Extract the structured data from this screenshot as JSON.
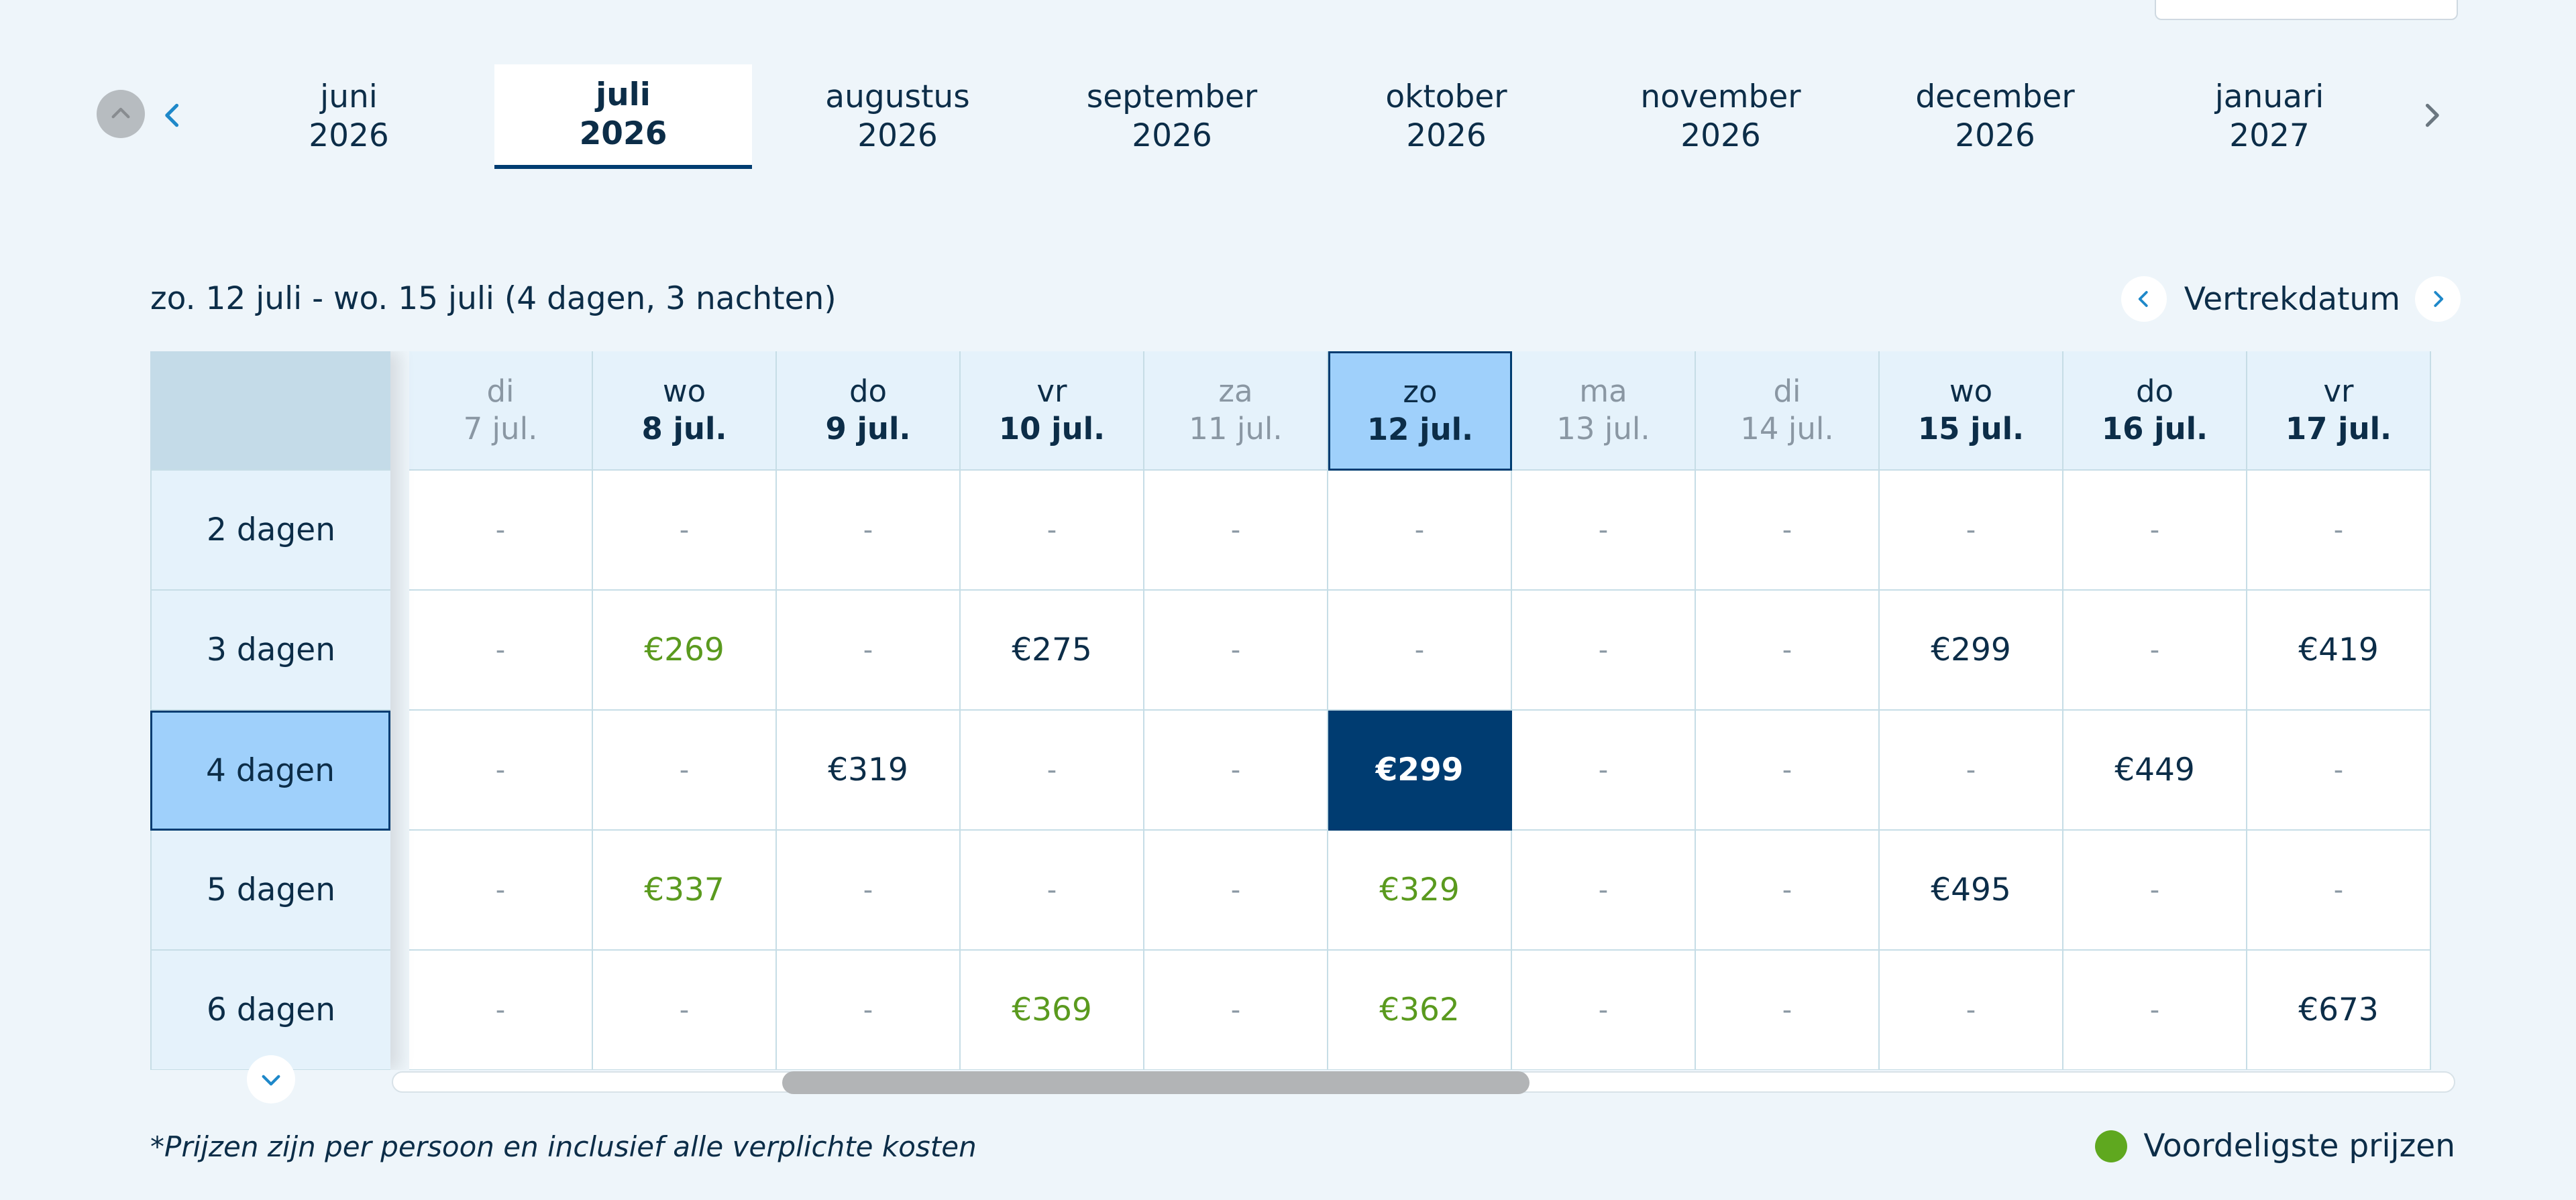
{
  "month_nav": {
    "prev_icon": "chevron-left-icon",
    "next_icon": "chevron-right-icon",
    "colors": {
      "prev": "#1e88c9",
      "next": "#6b7780"
    },
    "months": [
      {
        "month": "juni",
        "year": "2026",
        "active": false
      },
      {
        "month": "juli",
        "year": "2026",
        "active": true
      },
      {
        "month": "augustus",
        "year": "2026",
        "active": false
      },
      {
        "month": "september",
        "year": "2026",
        "active": false
      },
      {
        "month": "oktober",
        "year": "2026",
        "active": false
      },
      {
        "month": "november",
        "year": "2026",
        "active": false
      },
      {
        "month": "december",
        "year": "2026",
        "active": false
      },
      {
        "month": "januari",
        "year": "2027",
        "active": false
      }
    ]
  },
  "selection": {
    "range_text": "zo. 12 juli - wo. 15 juli (4 dagen, 3 nachten)",
    "departure_label": "Vertrekdatum"
  },
  "table": {
    "columns": [
      {
        "day": "di",
        "date": "7 jul.",
        "muted": true
      },
      {
        "day": "wo",
        "date": "8 jul.",
        "muted": false
      },
      {
        "day": "do",
        "date": "9 jul.",
        "muted": false
      },
      {
        "day": "vr",
        "date": "10 jul.",
        "muted": false
      },
      {
        "day": "za",
        "date": "11 jul.",
        "muted": true
      },
      {
        "day": "zo",
        "date": "12 jul.",
        "muted": false,
        "selected": true
      },
      {
        "day": "ma",
        "date": "13 jul.",
        "muted": true
      },
      {
        "day": "di",
        "date": "14 jul.",
        "muted": true
      },
      {
        "day": "wo",
        "date": "15 jul.",
        "muted": false
      },
      {
        "day": "do",
        "date": "16 jul.",
        "muted": false
      },
      {
        "day": "vr",
        "date": "17 jul.",
        "muted": false
      }
    ],
    "rows": [
      {
        "label": "2 dagen",
        "selected": false,
        "cells": [
          {
            "v": "-"
          },
          {
            "v": "-"
          },
          {
            "v": "-"
          },
          {
            "v": "-"
          },
          {
            "v": "-"
          },
          {
            "v": "-"
          },
          {
            "v": "-"
          },
          {
            "v": "-"
          },
          {
            "v": "-"
          },
          {
            "v": "-"
          },
          {
            "v": "-"
          }
        ]
      },
      {
        "label": "3 dagen",
        "selected": false,
        "cells": [
          {
            "v": "-"
          },
          {
            "v": "€269",
            "cheap": true
          },
          {
            "v": "-"
          },
          {
            "v": "€275"
          },
          {
            "v": "-"
          },
          {
            "v": "-"
          },
          {
            "v": "-"
          },
          {
            "v": "-"
          },
          {
            "v": "€299"
          },
          {
            "v": "-"
          },
          {
            "v": "€419"
          }
        ]
      },
      {
        "label": "4 dagen",
        "selected": true,
        "cells": [
          {
            "v": "-"
          },
          {
            "v": "-"
          },
          {
            "v": "€319"
          },
          {
            "v": "-"
          },
          {
            "v": "-"
          },
          {
            "v": "€299",
            "selected": true
          },
          {
            "v": "-"
          },
          {
            "v": "-"
          },
          {
            "v": "-"
          },
          {
            "v": "€449"
          },
          {
            "v": "-"
          }
        ]
      },
      {
        "label": "5 dagen",
        "selected": false,
        "cells": [
          {
            "v": "-"
          },
          {
            "v": "€337",
            "cheap": true
          },
          {
            "v": "-"
          },
          {
            "v": "-"
          },
          {
            "v": "-"
          },
          {
            "v": "€329",
            "cheap": true
          },
          {
            "v": "-"
          },
          {
            "v": "-"
          },
          {
            "v": "€495"
          },
          {
            "v": "-"
          },
          {
            "v": "-"
          }
        ]
      },
      {
        "label": "6 dagen",
        "selected": false,
        "cells": [
          {
            "v": "-"
          },
          {
            "v": "-"
          },
          {
            "v": "-"
          },
          {
            "v": "€369",
            "cheap": true
          },
          {
            "v": "-"
          },
          {
            "v": "€362",
            "cheap": true
          },
          {
            "v": "-"
          },
          {
            "v": "-"
          },
          {
            "v": "-"
          },
          {
            "v": "-"
          },
          {
            "v": "€673"
          }
        ]
      }
    ]
  },
  "footer": {
    "note": "*Prijzen zijn per persoon en inclusief alle verplichte kosten",
    "legend_label": "Voordeligste prijzen",
    "legend_color": "#5fa81f"
  },
  "colors": {
    "selected_bg": "#003c71",
    "selected_light": "#9fd0fb",
    "cheap_price": "#5a9a1e",
    "accent": "#1e88c9"
  }
}
